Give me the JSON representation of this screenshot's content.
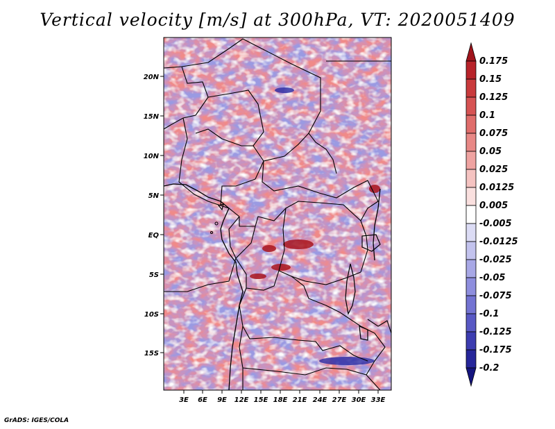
{
  "figure": {
    "title": "Vertical velocity [m/s] at 300hPa, VT: 2020051409",
    "credit": "GrADS: IGES/COLA"
  },
  "map": {
    "variable": "Vertical velocity",
    "units": "m/s",
    "level": "300hPa",
    "valid_time": "2020051409",
    "lat_ticks": [
      "20N",
      "15N",
      "10N",
      "5N",
      "EQ",
      "5S",
      "10S",
      "15S"
    ],
    "lon_ticks": [
      "3E",
      "6E",
      "9E",
      "12E",
      "15E",
      "18E",
      "21E",
      "24E",
      "27E",
      "30E",
      "33E"
    ],
    "colorbar": {
      "labels": [
        "0.175",
        "0.15",
        "0.125",
        "0.1",
        "0.075",
        "0.05",
        "0.025",
        "0.0125",
        "0.005",
        "-0.005",
        "-0.0125",
        "-0.025",
        "-0.05",
        "-0.075",
        "-0.1",
        "-0.125",
        "-0.175",
        "-0.2"
      ],
      "colors": [
        "#a0141c",
        "#b8232a",
        "#c93a3c",
        "#d65353",
        "#e06d6b",
        "#e88886",
        "#efa3a1",
        "#f5c3c1",
        "#fae0df",
        "#ffffff",
        "#dcdcf5",
        "#c3c3ee",
        "#a8a8e6",
        "#8e8ede",
        "#7373d2",
        "#5858c4",
        "#3c3cb0",
        "#26269a",
        "#14147e"
      ]
    },
    "colors": {
      "frame": "#000000",
      "border": "#000000",
      "ocean_base": "#9898e0"
    }
  }
}
